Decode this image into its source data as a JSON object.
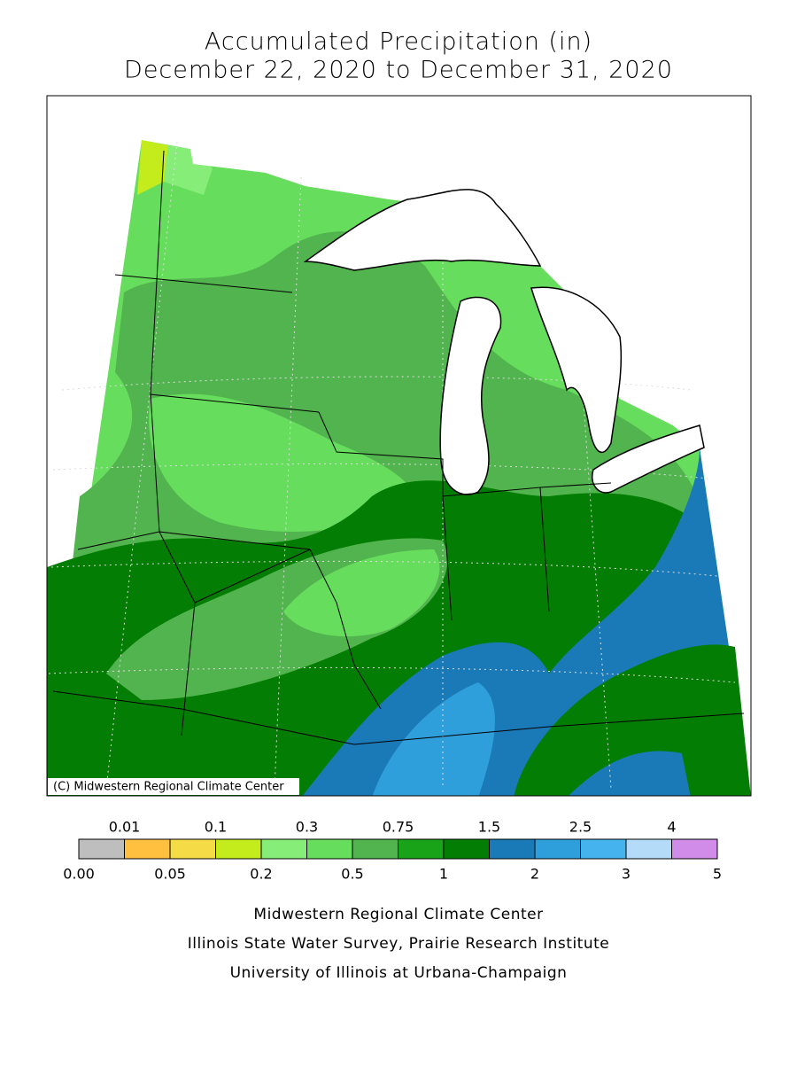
{
  "title": [
    "Accumulated Precipitation (in)",
    "December 22, 2020 to December 31, 2020"
  ],
  "map": {
    "credit": "(C) Midwestern Regional Climate Center"
  },
  "legend": {
    "colors": [
      "#bebebe",
      "#ffbf3f",
      "#f5dc46",
      "#c4ec1c",
      "#86ee78",
      "#66dd5c",
      "#52b44e",
      "#18a318",
      "#047d04",
      "#1a7ab8",
      "#2e9fda",
      "#45b4ee",
      "#b4dcf8",
      "#d08ce8"
    ],
    "labels": [
      "0.00",
      "0.01",
      "0.05",
      "0.1",
      "0.2",
      "0.3",
      "0.5",
      "0.75",
      "1",
      "1.5",
      "2",
      "2.5",
      "3",
      "4",
      "5"
    ]
  },
  "footer": [
    "Midwestern Regional Climate Center",
    "Illinois State Water Survey, Prairie Research Institute",
    "University of Illinois at Urbana-Champaign"
  ]
}
